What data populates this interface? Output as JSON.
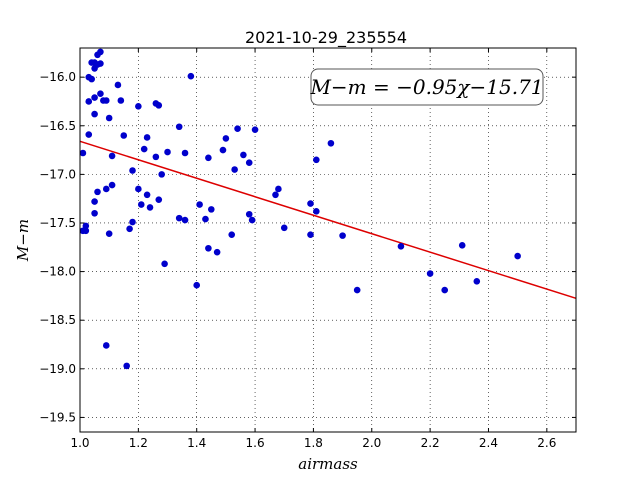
{
  "chart_data": {
    "type": "scatter",
    "title": "2021-10-29_235554",
    "xlabel": "airmass",
    "ylabel": "M−m",
    "xlim": [
      1.0,
      2.7
    ],
    "ylim": [
      -19.65,
      -15.7
    ],
    "y_inverted": false,
    "grid": true,
    "x_ticks": [
      "1.0",
      "1.2",
      "1.4",
      "1.6",
      "1.8",
      "2.0",
      "2.2",
      "2.4",
      "2.6"
    ],
    "y_ticks": [
      "−16.0",
      "−16.5",
      "−17.0",
      "−17.5",
      "−18.0",
      "−18.5",
      "−19.0",
      "−19.5"
    ],
    "annotation": "M−m = −0.95χ−15.71",
    "fit": {
      "slope": -0.95,
      "intercept": -15.71,
      "color": "#dd0000"
    },
    "point_color": "#0000cc",
    "points": [
      [
        1.01,
        -16.78
      ],
      [
        1.01,
        -17.58
      ],
      [
        1.02,
        -17.58
      ],
      [
        1.02,
        -17.53
      ],
      [
        1.03,
        -16.59
      ],
      [
        1.03,
        -16.25
      ],
      [
        1.03,
        -16.0
      ],
      [
        1.04,
        -15.85
      ],
      [
        1.04,
        -16.02
      ],
      [
        1.05,
        -15.85
      ],
      [
        1.05,
        -15.91
      ],
      [
        1.05,
        -17.4
      ],
      [
        1.05,
        -17.28
      ],
      [
        1.05,
        -16.38
      ],
      [
        1.05,
        -16.21
      ],
      [
        1.06,
        -15.87
      ],
      [
        1.06,
        -17.18
      ],
      [
        1.06,
        -15.77
      ],
      [
        1.07,
        -15.74
      ],
      [
        1.07,
        -15.86
      ],
      [
        1.07,
        -16.17
      ],
      [
        1.08,
        -16.24
      ],
      [
        1.09,
        -17.15
      ],
      [
        1.09,
        -16.24
      ],
      [
        1.09,
        -18.76
      ],
      [
        1.1,
        -17.61
      ],
      [
        1.1,
        -16.42
      ],
      [
        1.11,
        -16.81
      ],
      [
        1.11,
        -17.11
      ],
      [
        1.13,
        -16.08
      ],
      [
        1.14,
        -16.24
      ],
      [
        1.15,
        -16.6
      ],
      [
        1.16,
        -18.97
      ],
      [
        1.17,
        -17.56
      ],
      [
        1.18,
        -17.49
      ],
      [
        1.18,
        -16.96
      ],
      [
        1.2,
        -16.3
      ],
      [
        1.2,
        -17.15
      ],
      [
        1.21,
        -17.31
      ],
      [
        1.22,
        -16.74
      ],
      [
        1.23,
        -16.62
      ],
      [
        1.23,
        -17.21
      ],
      [
        1.24,
        -17.34
      ],
      [
        1.26,
        -16.27
      ],
      [
        1.26,
        -16.82
      ],
      [
        1.27,
        -16.29
      ],
      [
        1.27,
        -17.26
      ],
      [
        1.28,
        -17.0
      ],
      [
        1.29,
        -17.92
      ],
      [
        1.3,
        -16.77
      ],
      [
        1.34,
        -16.51
      ],
      [
        1.34,
        -17.45
      ],
      [
        1.36,
        -17.47
      ],
      [
        1.36,
        -16.78
      ],
      [
        1.38,
        -15.99
      ],
      [
        1.4,
        -18.14
      ],
      [
        1.41,
        -17.31
      ],
      [
        1.43,
        -17.46
      ],
      [
        1.44,
        -17.76
      ],
      [
        1.44,
        -16.83
      ],
      [
        1.45,
        -17.36
      ],
      [
        1.47,
        -17.8
      ],
      [
        1.49,
        -16.75
      ],
      [
        1.5,
        -16.63
      ],
      [
        1.52,
        -17.62
      ],
      [
        1.53,
        -16.95
      ],
      [
        1.54,
        -16.53
      ],
      [
        1.56,
        -16.8
      ],
      [
        1.58,
        -16.88
      ],
      [
        1.58,
        -17.41
      ],
      [
        1.59,
        -17.47
      ],
      [
        1.6,
        -16.54
      ],
      [
        1.67,
        -17.21
      ],
      [
        1.68,
        -17.15
      ],
      [
        1.7,
        -17.55
      ],
      [
        1.79,
        -17.3
      ],
      [
        1.79,
        -17.62
      ],
      [
        1.81,
        -16.85
      ],
      [
        1.81,
        -17.38
      ],
      [
        1.86,
        -16.68
      ],
      [
        1.9,
        -17.63
      ],
      [
        1.95,
        -18.19
      ],
      [
        2.1,
        -17.74
      ],
      [
        2.2,
        -18.02
      ],
      [
        2.25,
        -18.19
      ],
      [
        2.31,
        -17.73
      ],
      [
        2.36,
        -18.1
      ],
      [
        2.5,
        -17.84
      ]
    ]
  }
}
